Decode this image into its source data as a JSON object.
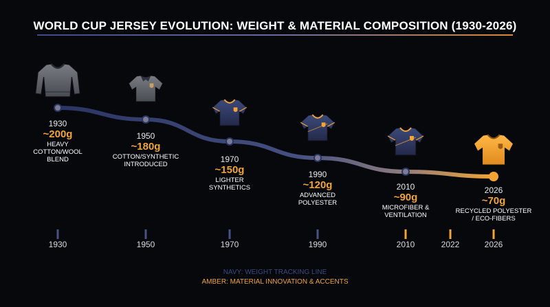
{
  "title": "WORLD CUP JERSEY EVOLUTION: WEIGHT & MATERIAL COMPOSITION (1930-2026)",
  "colors": {
    "navy": "#2d3a6b",
    "amber": "#f2a435",
    "background": "#07080c"
  },
  "milestones": [
    {
      "year": "1930",
      "weight": "~200g",
      "material": "HEAVY COTTON/WOOL BLEND",
      "material_lines": [
        "HEAVY",
        "COTTON/WOOL",
        "BLEND"
      ],
      "jersey": "long-sleeve-wool-jersey-icon"
    },
    {
      "year": "1950",
      "weight": "~180g",
      "material": "COTTON/SYNTHETIC INTRODUCED",
      "material_lines": [
        "COTTON/SYNTHETIC",
        "INTRODUCED"
      ],
      "jersey": "collared-jersey-icon"
    },
    {
      "year": "1970",
      "weight": "~150g",
      "material": "LIGHTER SYNTHETICS",
      "material_lines": [
        "LIGHTER",
        "SYNTHETICS"
      ],
      "jersey": "v-neck-jersey-icon"
    },
    {
      "year": "1990",
      "weight": "~120g",
      "material": "ADVANCED POLYESTER",
      "material_lines": [
        "ADVANCED",
        "POLYESTER"
      ],
      "jersey": "polyester-jersey-icon"
    },
    {
      "year": "2010",
      "weight": "~90g",
      "material": "MICROFIBER & VENTILATION",
      "material_lines": [
        "MICROFIBER &",
        "VENTILATION"
      ],
      "jersey": "microfiber-jersey-icon"
    },
    {
      "year": "2026",
      "weight": "~70g",
      "material": "RECYCLED POLYESTER / ECO-FIBERS",
      "material_lines": [
        "RECYCLED POLYESTER",
        "/ ECO-FIBERS"
      ],
      "jersey": "eco-fiber-jersey-icon"
    }
  ],
  "timeline_axis": [
    "1930",
    "1950",
    "1970",
    "1990",
    "2010",
    "2022",
    "2026"
  ],
  "legend": {
    "navy": "NAVY: WEIGHT TRACKING LINE",
    "amber": "AMBER: MATERIAL INNOVATION & ACCENTS"
  }
}
